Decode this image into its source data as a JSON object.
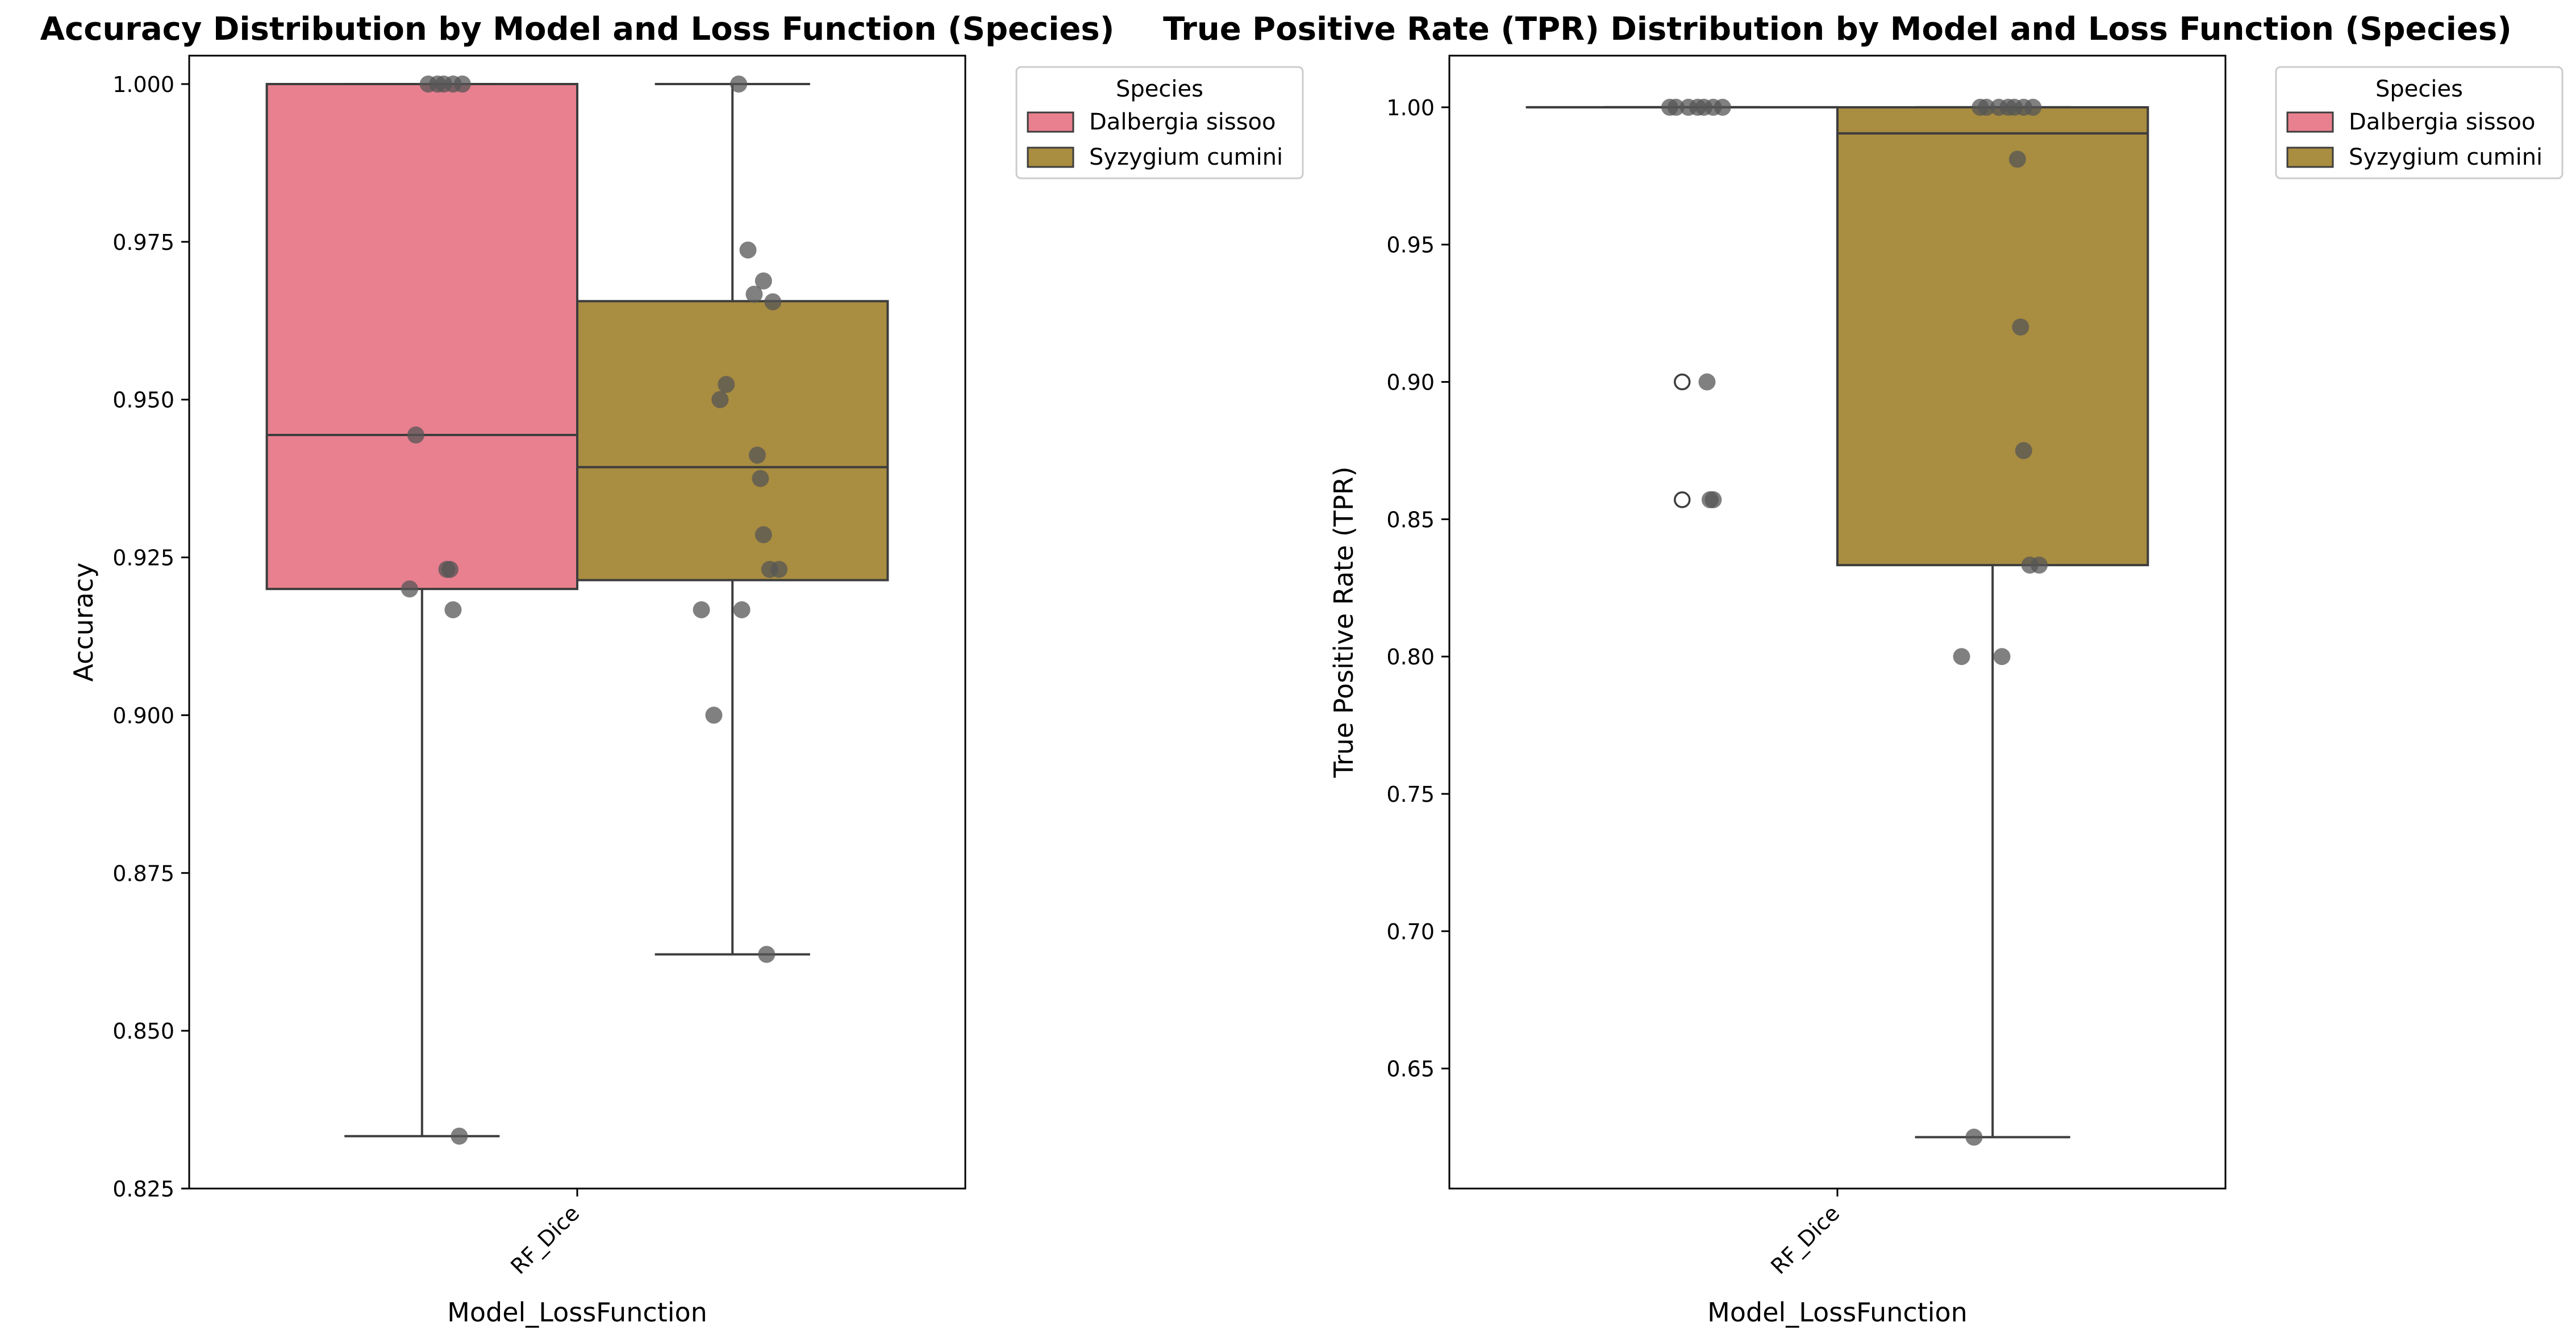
{
  "chart_data": [
    {
      "type": "box",
      "title": "Accuracy Distribution by Model and Loss Function (Species)",
      "xlabel": "Model_LossFunction",
      "ylabel": "Accuracy",
      "categories": [
        "RF_Dice"
      ],
      "ylim": [
        0.825,
        1.0045
      ],
      "yticks": [
        0.825,
        0.85,
        0.875,
        0.9,
        0.925,
        0.95,
        0.975,
        1.0
      ],
      "ytick_labels": [
        "0.825",
        "0.850",
        "0.875",
        "0.900",
        "0.925",
        "0.950",
        "0.975",
        "1.000"
      ],
      "grid": false,
      "legend": {
        "title": "Species",
        "placement": "outside-top-right"
      },
      "series": [
        {
          "name": "Dalbergia sissoo",
          "color": "#E8808F",
          "box": {
            "whislo": 0.8333,
            "q1": 0.92,
            "med": 0.9444,
            "q3": 1.0,
            "whishi": 1.0
          },
          "points": [
            1.0,
            1.0,
            1.0,
            1.0,
            1.0,
            0.9444,
            0.92,
            0.9231,
            0.9231,
            0.9167,
            0.8333
          ]
        },
        {
          "name": "Syzygium cumini",
          "color": "#A98D40",
          "box": {
            "whislo": 0.8621,
            "q1": 0.9214,
            "med": 0.9393,
            "q3": 0.9656,
            "whishi": 1.0
          },
          "points": [
            1.0,
            0.9737,
            0.9667,
            0.9688,
            0.9655,
            0.9524,
            0.95,
            0.9412,
            0.9375,
            0.9286,
            0.9231,
            0.9231,
            0.9167,
            0.9167,
            0.9,
            0.8621
          ]
        }
      ]
    },
    {
      "type": "box",
      "title": "True Positive Rate (TPR) Distribution by Model and Loss Function (Species)",
      "xlabel": "Model_LossFunction",
      "ylabel": "True Positive Rate (TPR)",
      "categories": [
        "RF_Dice"
      ],
      "ylim": [
        0.6063,
        1.0188
      ],
      "yticks": [
        0.65,
        0.7,
        0.75,
        0.8,
        0.85,
        0.9,
        0.95,
        1.0
      ],
      "ytick_labels": [
        "0.65",
        "0.70",
        "0.75",
        "0.80",
        "0.85",
        "0.90",
        "0.95",
        "1.00"
      ],
      "grid": false,
      "legend": {
        "title": "Species",
        "placement": "outside-top-right"
      },
      "series": [
        {
          "name": "Dalbergia sissoo",
          "color": "#E8808F",
          "box": {
            "whislo": 1.0,
            "q1": 1.0,
            "med": 1.0,
            "q3": 1.0,
            "whishi": 1.0
          },
          "fliers": [
            0.9,
            0.8571
          ],
          "points": [
            1.0,
            1.0,
            1.0,
            1.0,
            1.0,
            1.0,
            1.0,
            0.9,
            0.8571,
            0.8571
          ]
        },
        {
          "name": "Syzygium cumini",
          "color": "#A98D40",
          "box": {
            "whislo": 0.625,
            "q1": 0.8333,
            "med": 0.9905,
            "q3": 1.0,
            "whishi": 1.0
          },
          "points": [
            1.0,
            1.0,
            1.0,
            1.0,
            1.0,
            1.0,
            1.0,
            0.9811,
            0.92,
            0.875,
            0.8333,
            0.8333,
            0.8,
            0.8,
            0.625
          ]
        }
      ]
    }
  ]
}
